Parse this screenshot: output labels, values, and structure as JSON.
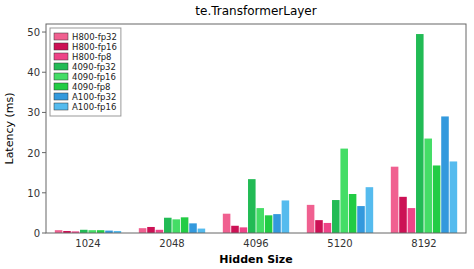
{
  "chart_data": {
    "type": "bar",
    "title": "te.TransformerLayer",
    "x_label": "Hidden Size",
    "y_label": "Latency (ms)",
    "categories": [
      1024,
      2048,
      4096,
      5120,
      8192
    ],
    "ylim": [
      0,
      52
    ],
    "yticks": [
      0,
      10,
      20,
      30,
      40,
      50
    ],
    "grid": false,
    "legend": "upper left",
    "series": [
      {
        "name": "H800-fp32",
        "color": "#f06090",
        "values": [
          0.7,
          1.2,
          4.8,
          7.0,
          16.5
        ]
      },
      {
        "name": "H800-fp16",
        "color": "#cc1155",
        "values": [
          0.5,
          1.5,
          1.8,
          3.2,
          9.0
        ]
      },
      {
        "name": "H800-fp8",
        "color": "#ee4488",
        "values": [
          0.4,
          0.8,
          1.4,
          2.5,
          6.2
        ]
      },
      {
        "name": "4090-fp32",
        "color": "#22bb55",
        "values": [
          0.8,
          3.8,
          13.4,
          8.2,
          49.5
        ]
      },
      {
        "name": "4090-fp16",
        "color": "#44dd66",
        "values": [
          0.7,
          3.4,
          6.2,
          21.0,
          23.5
        ]
      },
      {
        "name": "4090-fp8",
        "color": "#22cc44",
        "values": [
          0.7,
          3.9,
          4.4,
          9.7,
          16.8
        ]
      },
      {
        "name": "A100-fp32",
        "color": "#3399dd",
        "values": [
          0.6,
          2.4,
          4.7,
          6.7,
          29.0
        ]
      },
      {
        "name": "A100-fp16",
        "color": "#55bbee",
        "values": [
          0.5,
          1.1,
          8.1,
          11.4,
          17.8
        ]
      }
    ]
  }
}
